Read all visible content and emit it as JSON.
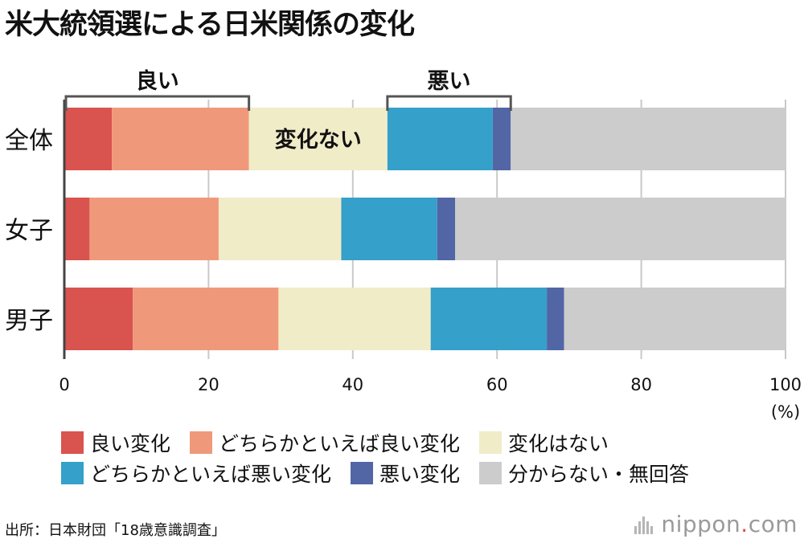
{
  "title": "米大統領選による日米関係の変化",
  "chart_data": {
    "type": "bar",
    "orientation": "horizontal",
    "stacked": true,
    "categories": [
      "全体",
      "女子",
      "男子"
    ],
    "series": [
      {
        "name": "良い変化",
        "color": "#d9534f",
        "values": [
          6.6,
          3.5,
          9.5
        ]
      },
      {
        "name": "どちらかといえば良い変化",
        "color": "#f0997a",
        "values": [
          19.0,
          17.9,
          20.2
        ]
      },
      {
        "name": "変化はない",
        "color": "#f1ecc8",
        "values": [
          19.2,
          17.0,
          21.1
        ]
      },
      {
        "name": "どちらかといえば悪い変化",
        "color": "#35a0c9",
        "values": [
          14.6,
          13.3,
          16.1
        ]
      },
      {
        "name": "悪い変化",
        "color": "#5266a6",
        "values": [
          2.5,
          2.5,
          2.4
        ]
      },
      {
        "name": "分からない・無回答",
        "color": "#cccccc",
        "values": [
          38.1,
          45.8,
          30.7
        ]
      }
    ],
    "xlim": [
      0,
      100
    ],
    "xticks": [
      "0",
      "20",
      "40",
      "60",
      "80",
      "100"
    ],
    "xunit": "(%)",
    "grid": true,
    "annotations": {
      "good_bracket": {
        "label": "良い",
        "from": 0,
        "to": 25.6
      },
      "bad_bracket": {
        "label": "悪い",
        "from": 44.8,
        "to": 61.9
      },
      "inbar_label": "変化ない"
    }
  },
  "legend": {
    "rows": [
      [
        {
          "label": "良い変化",
          "color": "#d9534f"
        },
        {
          "label": "どちらかといえば良い変化",
          "color": "#f0997a"
        },
        {
          "label": "変化はない",
          "color": "#f1ecc8"
        }
      ],
      [
        {
          "label": "どちらかといえば悪い変化",
          "color": "#35a0c9"
        },
        {
          "label": "悪い変化",
          "color": "#5266a6"
        },
        {
          "label": "分からない・無回答",
          "color": "#cccccc"
        }
      ]
    ]
  },
  "source": "出所：日本財団「18歳意識調査」",
  "logo": {
    "main": "nippon",
    "dot": ".",
    "tail": "com"
  }
}
